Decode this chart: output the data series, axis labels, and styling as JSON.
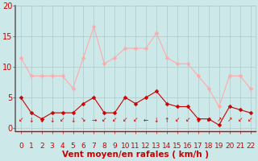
{
  "x": [
    0,
    1,
    2,
    3,
    4,
    5,
    6,
    7,
    8,
    9,
    10,
    11,
    12,
    13,
    14,
    15,
    16,
    17,
    18,
    19,
    20,
    21,
    22
  ],
  "wind_avg": [
    5,
    2.5,
    1.5,
    2.5,
    2.5,
    2.5,
    4,
    5,
    2.5,
    2.5,
    5,
    4,
    5,
    6,
    4,
    3.5,
    3.5,
    1.5,
    1.5,
    0.5,
    3.5,
    3,
    2.5
  ],
  "wind_gust": [
    11.5,
    8.5,
    8.5,
    8.5,
    8.5,
    6.5,
    11.5,
    16.5,
    10.5,
    11.5,
    13,
    13,
    13,
    15.5,
    11.5,
    10.5,
    10.5,
    8.5,
    6.5,
    3.5,
    8.5,
    8.5,
    6.5
  ],
  "xlabel": "Vent moyen/en rafales ( km/h )",
  "xlim": [
    -0.5,
    22.5
  ],
  "ylim": [
    -0.5,
    20
  ],
  "yticks": [
    0,
    5,
    10,
    15,
    20
  ],
  "bg_color": "#cce8e8",
  "grid_color": "#aacccc",
  "line_color_avg": "#cc0000",
  "line_color_gust": "#ffaaaa",
  "marker_size": 2.5,
  "xlabel_fontsize": 7.5,
  "tick_fontsize": 6.5,
  "arrows": [
    "↙",
    "↓",
    "↓",
    "↓",
    "↙",
    "↓",
    "↘",
    "→",
    "↙",
    "↙",
    "↙",
    "↙",
    "←",
    "↓",
    "↑",
    "↙",
    "↙",
    "↓",
    "↙",
    "↗",
    "↗",
    "↙",
    "↙"
  ]
}
